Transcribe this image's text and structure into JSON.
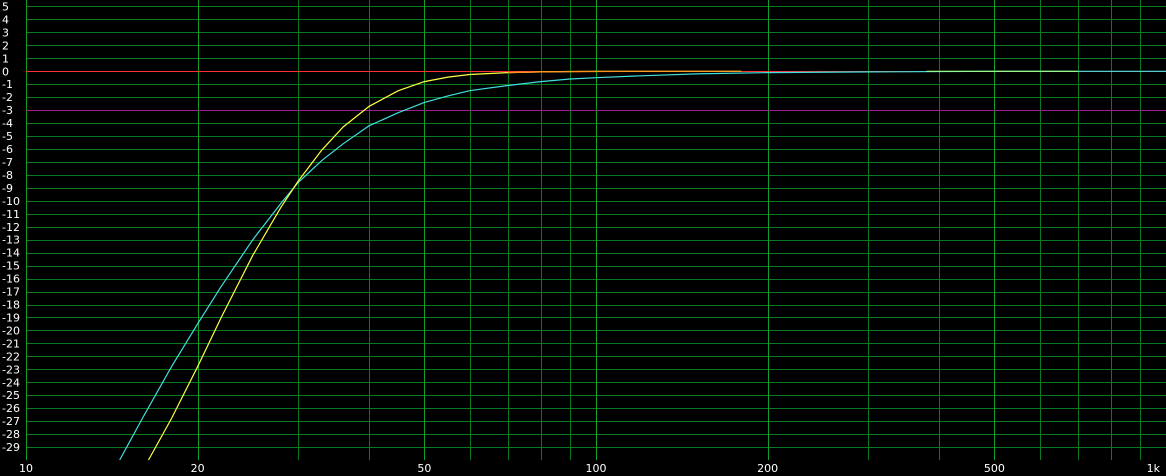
{
  "chart_data": {
    "type": "line",
    "title": "",
    "xlabel": "",
    "ylabel": "",
    "x_scale": "log",
    "xlim": [
      10,
      1000
    ],
    "ylim": [
      -30,
      5.5
    ],
    "grid": true,
    "legend": "none",
    "x_ticks": [
      {
        "value": 10,
        "label": "10"
      },
      {
        "value": 20,
        "label": "20"
      },
      {
        "value": 50,
        "label": "50"
      },
      {
        "value": 100,
        "label": "100"
      },
      {
        "value": 200,
        "label": "200"
      },
      {
        "value": 500,
        "label": "500"
      },
      {
        "value": 1000,
        "label": "1k"
      }
    ],
    "x_gridlines": [
      10,
      20,
      30,
      40,
      50,
      60,
      70,
      80,
      90,
      100,
      200,
      300,
      400,
      500,
      600,
      700,
      800,
      900,
      1000
    ],
    "y_ticks": [
      5,
      4,
      3,
      2,
      1,
      0,
      -1,
      -2,
      -3,
      -4,
      -5,
      -6,
      -7,
      -8,
      -9,
      -10,
      -11,
      -12,
      -13,
      -14,
      -15,
      -16,
      -17,
      -18,
      -19,
      -20,
      -21,
      -22,
      -23,
      -24,
      -25,
      -26,
      -27,
      -28,
      -29
    ],
    "reference_lines": [
      {
        "y": 0,
        "color": "#ff3030"
      },
      {
        "y": -3,
        "color": "#a0208a"
      }
    ],
    "series": [
      {
        "color": "#40e0e0",
        "x": [
          14.6,
          16,
          18,
          20,
          22,
          25,
          28,
          30,
          33,
          36,
          40,
          45,
          50,
          55,
          60,
          70,
          80,
          90,
          100,
          120,
          150,
          200,
          300,
          500,
          700,
          1000
        ],
        "y": [
          -30,
          -26.8,
          -22.8,
          -19.5,
          -16.6,
          -13,
          -10.2,
          -8.6,
          -6.9,
          -5.6,
          -4.2,
          -3.2,
          -2.4,
          -1.9,
          -1.5,
          -1.1,
          -0.8,
          -0.6,
          -0.5,
          -0.35,
          -0.2,
          -0.1,
          -0.05,
          0,
          0,
          0
        ]
      },
      {
        "color": "#ffff40",
        "x": [
          16.4,
          18,
          20,
          22,
          25,
          28,
          30,
          33,
          36,
          40,
          45,
          50,
          55,
          60,
          70,
          80,
          90,
          100,
          120,
          150,
          180
        ],
        "y": [
          -30,
          -26.8,
          -22.8,
          -19,
          -14.2,
          -10.5,
          -8.5,
          -6.1,
          -4.3,
          -2.7,
          -1.5,
          -0.8,
          -0.45,
          -0.25,
          -0.1,
          -0.05,
          -0.02,
          0,
          0,
          0,
          0
        ]
      },
      {
        "color": "#ff9020",
        "x": [
          70,
          80,
          100,
          120,
          150,
          180
        ],
        "y": [
          -0.1,
          -0.05,
          -0.02,
          0,
          0,
          0
        ]
      },
      {
        "color": "#a0ff80",
        "x": [
          380,
          500,
          600,
          700
        ],
        "y": [
          0,
          0,
          0,
          0
        ]
      }
    ]
  }
}
